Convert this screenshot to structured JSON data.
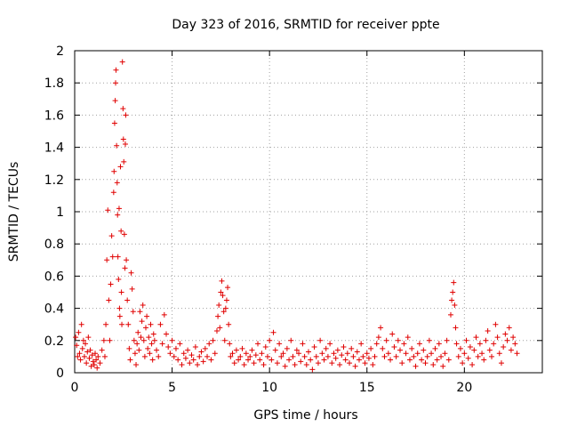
{
  "chart_data": {
    "type": "scatter",
    "title": "Day 323 of 2016, SRMTID for receiver ppte",
    "xlabel": "GPS time / hours",
    "ylabel": "SRMTID / TECUs",
    "xlim": [
      0,
      24
    ],
    "ylim": [
      0,
      2
    ],
    "xticks": [
      0,
      5,
      10,
      15,
      20
    ],
    "yticks": [
      0,
      0.2,
      0.4,
      0.6,
      0.8,
      1,
      1.2,
      1.4,
      1.6,
      1.8,
      2
    ],
    "xtick_labels": [
      "0",
      "5",
      "10",
      "15",
      "20"
    ],
    "ytick_labels": [
      "0",
      "0.2",
      "0.4",
      "0.6",
      "0.8",
      "1",
      "1.2",
      "1.4",
      "1.6",
      "1.8",
      "2"
    ],
    "grid": true,
    "marker": "+",
    "color": "#e00000",
    "series": [
      {
        "name": "SRMTID",
        "points": [
          [
            0.05,
            0.22
          ],
          [
            0.1,
            0.17
          ],
          [
            0.15,
            0.1
          ],
          [
            0.2,
            0.25
          ],
          [
            0.25,
            0.12
          ],
          [
            0.3,
            0.08
          ],
          [
            0.35,
            0.3
          ],
          [
            0.4,
            0.15
          ],
          [
            0.45,
            0.2
          ],
          [
            0.5,
            0.1
          ],
          [
            0.55,
            0.18
          ],
          [
            0.6,
            0.06
          ],
          [
            0.65,
            0.13
          ],
          [
            0.7,
            0.22
          ],
          [
            0.75,
            0.09
          ],
          [
            0.8,
            0.14
          ],
          [
            0.85,
            0.04
          ],
          [
            0.9,
            0.11
          ],
          [
            0.95,
            0.07
          ],
          [
            1.0,
            0.05
          ],
          [
            1.05,
            0.12
          ],
          [
            1.1,
            0.08
          ],
          [
            1.15,
            0.03
          ],
          [
            1.2,
            0.1
          ],
          [
            1.3,
            0.06
          ],
          [
            1.4,
            0.14
          ],
          [
            1.5,
            0.2
          ],
          [
            1.55,
            0.1
          ],
          [
            1.6,
            0.3
          ],
          [
            1.65,
            0.7
          ],
          [
            1.7,
            1.01
          ],
          [
            1.75,
            0.45
          ],
          [
            1.8,
            0.2
          ],
          [
            1.85,
            0.55
          ],
          [
            1.9,
            0.85
          ],
          [
            1.95,
            0.72
          ],
          [
            2.0,
            1.12
          ],
          [
            2.02,
            1.25
          ],
          [
            2.05,
            1.55
          ],
          [
            2.08,
            1.69
          ],
          [
            2.1,
            1.8
          ],
          [
            2.12,
            1.88
          ],
          [
            2.15,
            1.41
          ],
          [
            2.18,
            1.18
          ],
          [
            2.2,
            0.98
          ],
          [
            2.22,
            0.72
          ],
          [
            2.25,
            0.58
          ],
          [
            2.28,
            1.02
          ],
          [
            2.3,
            0.4
          ],
          [
            2.32,
            0.35
          ],
          [
            2.35,
            1.28
          ],
          [
            2.38,
            0.88
          ],
          [
            2.4,
            0.5
          ],
          [
            2.42,
            0.3
          ],
          [
            2.45,
            1.93
          ],
          [
            2.48,
            1.64
          ],
          [
            2.5,
            1.45
          ],
          [
            2.52,
            1.31
          ],
          [
            2.55,
            0.86
          ],
          [
            2.58,
            0.65
          ],
          [
            2.6,
            1.42
          ],
          [
            2.62,
            1.6
          ],
          [
            2.65,
            0.7
          ],
          [
            2.7,
            0.45
          ],
          [
            2.75,
            0.3
          ],
          [
            2.8,
            0.15
          ],
          [
            2.85,
            0.08
          ],
          [
            2.9,
            0.62
          ],
          [
            2.95,
            0.52
          ],
          [
            3.0,
            0.38
          ],
          [
            3.05,
            0.2
          ],
          [
            3.1,
            0.12
          ],
          [
            3.15,
            0.05
          ],
          [
            3.2,
            0.18
          ],
          [
            3.25,
            0.25
          ],
          [
            3.3,
            0.14
          ],
          [
            3.35,
            0.38
          ],
          [
            3.4,
            0.22
          ],
          [
            3.45,
            0.32
          ],
          [
            3.5,
            0.42
          ],
          [
            3.55,
            0.2
          ],
          [
            3.6,
            0.1
          ],
          [
            3.65,
            0.28
          ],
          [
            3.7,
            0.35
          ],
          [
            3.75,
            0.15
          ],
          [
            3.8,
            0.22
          ],
          [
            3.85,
            0.12
          ],
          [
            3.9,
            0.3
          ],
          [
            3.95,
            0.18
          ],
          [
            4.0,
            0.08
          ],
          [
            4.05,
            0.24
          ],
          [
            4.1,
            0.2
          ],
          [
            4.2,
            0.14
          ],
          [
            4.3,
            0.1
          ],
          [
            4.4,
            0.3
          ],
          [
            4.5,
            0.18
          ],
          [
            4.6,
            0.36
          ],
          [
            4.7,
            0.24
          ],
          [
            4.8,
            0.16
          ],
          [
            4.9,
            0.12
          ],
          [
            5.0,
            0.2
          ],
          [
            5.1,
            0.1
          ],
          [
            5.2,
            0.15
          ],
          [
            5.3,
            0.08
          ],
          [
            5.4,
            0.18
          ],
          [
            5.5,
            0.05
          ],
          [
            5.6,
            0.12
          ],
          [
            5.7,
            0.09
          ],
          [
            5.8,
            0.14
          ],
          [
            5.9,
            0.06
          ],
          [
            6.0,
            0.11
          ],
          [
            6.1,
            0.08
          ],
          [
            6.2,
            0.16
          ],
          [
            6.3,
            0.05
          ],
          [
            6.4,
            0.1
          ],
          [
            6.5,
            0.13
          ],
          [
            6.6,
            0.07
          ],
          [
            6.7,
            0.15
          ],
          [
            6.8,
            0.1
          ],
          [
            6.9,
            0.18
          ],
          [
            7.0,
            0.08
          ],
          [
            7.1,
            0.2
          ],
          [
            7.2,
            0.12
          ],
          [
            7.3,
            0.26
          ],
          [
            7.35,
            0.35
          ],
          [
            7.4,
            0.42
          ],
          [
            7.45,
            0.28
          ],
          [
            7.5,
            0.5
          ],
          [
            7.55,
            0.57
          ],
          [
            7.6,
            0.48
          ],
          [
            7.65,
            0.38
          ],
          [
            7.7,
            0.2
          ],
          [
            7.75,
            0.4
          ],
          [
            7.8,
            0.45
          ],
          [
            7.85,
            0.53
          ],
          [
            7.9,
            0.3
          ],
          [
            7.95,
            0.18
          ],
          [
            8.0,
            0.1
          ],
          [
            8.1,
            0.12
          ],
          [
            8.2,
            0.06
          ],
          [
            8.3,
            0.14
          ],
          [
            8.4,
            0.08
          ],
          [
            8.5,
            0.1
          ],
          [
            8.6,
            0.15
          ],
          [
            8.7,
            0.05
          ],
          [
            8.8,
            0.12
          ],
          [
            8.9,
            0.08
          ],
          [
            9.0,
            0.1
          ],
          [
            9.1,
            0.14
          ],
          [
            9.2,
            0.06
          ],
          [
            9.3,
            0.11
          ],
          [
            9.4,
            0.18
          ],
          [
            9.5,
            0.08
          ],
          [
            9.6,
            0.12
          ],
          [
            9.7,
            0.05
          ],
          [
            9.8,
            0.16
          ],
          [
            9.9,
            0.1
          ],
          [
            10.0,
            0.2
          ],
          [
            10.1,
            0.08
          ],
          [
            10.2,
            0.25
          ],
          [
            10.3,
            0.14
          ],
          [
            10.4,
            0.06
          ],
          [
            10.5,
            0.18
          ],
          [
            10.6,
            0.1
          ],
          [
            10.7,
            0.12
          ],
          [
            10.8,
            0.04
          ],
          [
            10.9,
            0.15
          ],
          [
            11.0,
            0.08
          ],
          [
            11.1,
            0.2
          ],
          [
            11.2,
            0.1
          ],
          [
            11.3,
            0.05
          ],
          [
            11.4,
            0.14
          ],
          [
            11.5,
            0.12
          ],
          [
            11.6,
            0.07
          ],
          [
            11.7,
            0.18
          ],
          [
            11.8,
            0.1
          ],
          [
            11.9,
            0.05
          ],
          [
            12.0,
            0.13
          ],
          [
            12.1,
            0.08
          ],
          [
            12.2,
            0.02
          ],
          [
            12.3,
            0.16
          ],
          [
            12.4,
            0.1
          ],
          [
            12.5,
            0.06
          ],
          [
            12.6,
            0.2
          ],
          [
            12.7,
            0.12
          ],
          [
            12.8,
            0.08
          ],
          [
            12.9,
            0.15
          ],
          [
            13.0,
            0.1
          ],
          [
            13.1,
            0.18
          ],
          [
            13.2,
            0.06
          ],
          [
            13.3,
            0.12
          ],
          [
            13.4,
            0.09
          ],
          [
            13.5,
            0.14
          ],
          [
            13.6,
            0.05
          ],
          [
            13.7,
            0.11
          ],
          [
            13.8,
            0.16
          ],
          [
            13.9,
            0.08
          ],
          [
            14.0,
            0.12
          ],
          [
            14.1,
            0.06
          ],
          [
            14.2,
            0.15
          ],
          [
            14.3,
            0.1
          ],
          [
            14.4,
            0.04
          ],
          [
            14.5,
            0.13
          ],
          [
            14.6,
            0.08
          ],
          [
            14.7,
            0.18
          ],
          [
            14.8,
            0.1
          ],
          [
            14.9,
            0.06
          ],
          [
            15.0,
            0.12
          ],
          [
            15.1,
            0.09
          ],
          [
            15.2,
            0.15
          ],
          [
            15.3,
            0.05
          ],
          [
            15.4,
            0.1
          ],
          [
            15.5,
            0.18
          ],
          [
            15.6,
            0.22
          ],
          [
            15.7,
            0.28
          ],
          [
            15.8,
            0.15
          ],
          [
            15.9,
            0.1
          ],
          [
            16.0,
            0.2
          ],
          [
            16.1,
            0.12
          ],
          [
            16.2,
            0.08
          ],
          [
            16.3,
            0.24
          ],
          [
            16.4,
            0.16
          ],
          [
            16.5,
            0.1
          ],
          [
            16.6,
            0.2
          ],
          [
            16.7,
            0.14
          ],
          [
            16.8,
            0.06
          ],
          [
            16.9,
            0.18
          ],
          [
            17.0,
            0.12
          ],
          [
            17.1,
            0.22
          ],
          [
            17.2,
            0.08
          ],
          [
            17.3,
            0.15
          ],
          [
            17.4,
            0.1
          ],
          [
            17.5,
            0.04
          ],
          [
            17.6,
            0.12
          ],
          [
            17.7,
            0.18
          ],
          [
            17.8,
            0.08
          ],
          [
            17.9,
            0.14
          ],
          [
            18.0,
            0.06
          ],
          [
            18.1,
            0.1
          ],
          [
            18.2,
            0.2
          ],
          [
            18.3,
            0.12
          ],
          [
            18.4,
            0.05
          ],
          [
            18.5,
            0.15
          ],
          [
            18.6,
            0.08
          ],
          [
            18.7,
            0.18
          ],
          [
            18.8,
            0.1
          ],
          [
            18.9,
            0.04
          ],
          [
            19.0,
            0.12
          ],
          [
            19.1,
            0.2
          ],
          [
            19.2,
            0.08
          ],
          [
            19.3,
            0.36
          ],
          [
            19.35,
            0.45
          ],
          [
            19.4,
            0.5
          ],
          [
            19.45,
            0.56
          ],
          [
            19.5,
            0.42
          ],
          [
            19.55,
            0.28
          ],
          [
            19.6,
            0.18
          ],
          [
            19.7,
            0.1
          ],
          [
            19.8,
            0.15
          ],
          [
            19.9,
            0.06
          ],
          [
            20.0,
            0.12
          ],
          [
            20.1,
            0.2
          ],
          [
            20.2,
            0.09
          ],
          [
            20.3,
            0.16
          ],
          [
            20.4,
            0.05
          ],
          [
            20.5,
            0.14
          ],
          [
            20.6,
            0.22
          ],
          [
            20.7,
            0.1
          ],
          [
            20.8,
            0.18
          ],
          [
            20.9,
            0.12
          ],
          [
            21.0,
            0.08
          ],
          [
            21.1,
            0.2
          ],
          [
            21.2,
            0.26
          ],
          [
            21.3,
            0.14
          ],
          [
            21.4,
            0.1
          ],
          [
            21.5,
            0.18
          ],
          [
            21.6,
            0.3
          ],
          [
            21.7,
            0.22
          ],
          [
            21.8,
            0.12
          ],
          [
            21.9,
            0.06
          ],
          [
            22.0,
            0.16
          ],
          [
            22.1,
            0.24
          ],
          [
            22.2,
            0.2
          ],
          [
            22.3,
            0.28
          ],
          [
            22.4,
            0.14
          ],
          [
            22.5,
            0.22
          ],
          [
            22.6,
            0.18
          ],
          [
            22.7,
            0.12
          ]
        ]
      }
    ]
  }
}
